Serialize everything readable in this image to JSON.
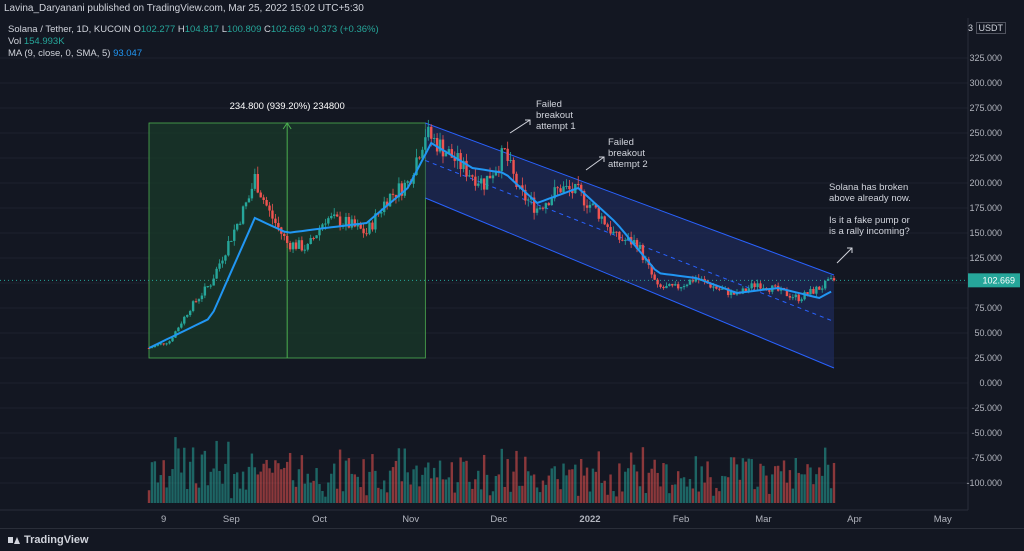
{
  "header": {
    "published_by": "Lavina_Daryanani published on TradingView.com, Mar 25, 2022 15:02 UTC+5:30"
  },
  "legend": {
    "symbol": "Solana / Tether, 1D, KUCOIN",
    "o_label": "O",
    "o": "102.277",
    "h_label": "H",
    "h": "104.817",
    "l_label": "L",
    "l": "100.809",
    "c_label": "C",
    "c": "102.669",
    "change": "+0.373 (+0.36%)",
    "vol_label": "Vol",
    "vol": "154.993K",
    "ma_label": "MA (9, close, 0, SMA, 5)",
    "ma": "93.047"
  },
  "axis": {
    "currency": "USDT",
    "scale_num": "3"
  },
  "footer": {
    "brand": "TradingView"
  },
  "colors": {
    "up": "#26a69a",
    "down": "#ef5350",
    "ma": "#2196f3",
    "bg": "#131722",
    "channel": "#1e2b5a",
    "measure_fill": "#1a3a2a",
    "measure_line": "#4caf50",
    "price_tag": "#26a69a"
  },
  "chart_data": {
    "type": "candlestick",
    "y_ticks": [
      "325.000",
      "300.000",
      "275.000",
      "250.000",
      "225.000",
      "200.000",
      "175.000",
      "150.000",
      "125.000",
      "100.000",
      "75.000",
      "50.000",
      "25.000",
      "0.000",
      "-25.000",
      "-50.000",
      "-75.000",
      "-100.000"
    ],
    "x_ticks": [
      "9",
      "Sep",
      "Oct",
      "Nov",
      "Dec",
      "2022",
      "Feb",
      "Mar",
      "Apr",
      "May"
    ],
    "last_price": "102.669",
    "price_series_keypoints": [
      {
        "date": "2021-08-04",
        "close": 35
      },
      {
        "date": "2021-08-11",
        "close": 42
      },
      {
        "date": "2021-08-18",
        "close": 75
      },
      {
        "date": "2021-08-25",
        "close": 100
      },
      {
        "date": "2021-08-31",
        "close": 140
      },
      {
        "date": "2021-09-07",
        "close": 185
      },
      {
        "date": "2021-09-09",
        "close": 205
      },
      {
        "date": "2021-09-14",
        "close": 170
      },
      {
        "date": "2021-09-20",
        "close": 140
      },
      {
        "date": "2021-09-27",
        "close": 135
      },
      {
        "date": "2021-10-03",
        "close": 165
      },
      {
        "date": "2021-10-10",
        "close": 160
      },
      {
        "date": "2021-10-17",
        "close": 150
      },
      {
        "date": "2021-10-24",
        "close": 185
      },
      {
        "date": "2021-10-31",
        "close": 200
      },
      {
        "date": "2021-11-06",
        "close": 250
      },
      {
        "date": "2021-11-12",
        "close": 235
      },
      {
        "date": "2021-11-19",
        "close": 215
      },
      {
        "date": "2021-11-26",
        "close": 200
      },
      {
        "date": "2021-12-03",
        "close": 230
      },
      {
        "date": "2021-12-08",
        "close": 190
      },
      {
        "date": "2021-12-14",
        "close": 175
      },
      {
        "date": "2021-12-22",
        "close": 195
      },
      {
        "date": "2021-12-28",
        "close": 190
      },
      {
        "date": "2022-01-04",
        "close": 170
      },
      {
        "date": "2022-01-10",
        "close": 145
      },
      {
        "date": "2022-01-17",
        "close": 140
      },
      {
        "date": "2022-01-24",
        "close": 95
      },
      {
        "date": "2022-01-30",
        "close": 95
      },
      {
        "date": "2022-02-06",
        "close": 105
      },
      {
        "date": "2022-02-13",
        "close": 95
      },
      {
        "date": "2022-02-20",
        "close": 88
      },
      {
        "date": "2022-02-27",
        "close": 100
      },
      {
        "date": "2022-03-06",
        "close": 92
      },
      {
        "date": "2022-03-13",
        "close": 85
      },
      {
        "date": "2022-03-20",
        "close": 95
      },
      {
        "date": "2022-03-25",
        "close": 102.669
      }
    ],
    "ma_keypoints": [
      {
        "date": "2021-08-04",
        "value": 35
      },
      {
        "date": "2021-08-25",
        "value": 65
      },
      {
        "date": "2021-09-09",
        "value": 165
      },
      {
        "date": "2021-09-20",
        "value": 150
      },
      {
        "date": "2021-10-03",
        "value": 155
      },
      {
        "date": "2021-10-17",
        "value": 160
      },
      {
        "date": "2021-10-31",
        "value": 195
      },
      {
        "date": "2021-11-08",
        "value": 240
      },
      {
        "date": "2021-11-22",
        "value": 215
      },
      {
        "date": "2021-12-03",
        "value": 210
      },
      {
        "date": "2021-12-14",
        "value": 180
      },
      {
        "date": "2021-12-28",
        "value": 195
      },
      {
        "date": "2022-01-10",
        "value": 160
      },
      {
        "date": "2022-01-24",
        "value": 110
      },
      {
        "date": "2022-02-06",
        "value": 105
      },
      {
        "date": "2022-02-20",
        "value": 90
      },
      {
        "date": "2022-03-06",
        "value": 95
      },
      {
        "date": "2022-03-20",
        "value": 85
      },
      {
        "date": "2022-03-25",
        "value": 93.047
      }
    ],
    "measure": {
      "label": "234.800 (939.20%) 234800",
      "from_price": 25,
      "to_price": 260,
      "from_date": "2021-08-04",
      "to_date": "2021-11-06"
    },
    "channel": {
      "upper_start": {
        "date": "2021-11-06",
        "price": 260
      },
      "upper_end": {
        "date": "2022-03-25",
        "price": 108
      },
      "lower_start": {
        "date": "2021-11-06",
        "price": 185
      },
      "lower_end": {
        "date": "2022-03-25",
        "price": 15
      }
    },
    "annotations": [
      {
        "lines": [
          "Failed",
          "breakout",
          "attempt 1"
        ]
      },
      {
        "lines": [
          "Failed",
          "breakout",
          "attempt 2"
        ]
      },
      {
        "lines": [
          "Solana has broken",
          "above already now.",
          "",
          "Is it a fake pump or",
          "is a rally incoming?"
        ]
      }
    ]
  }
}
